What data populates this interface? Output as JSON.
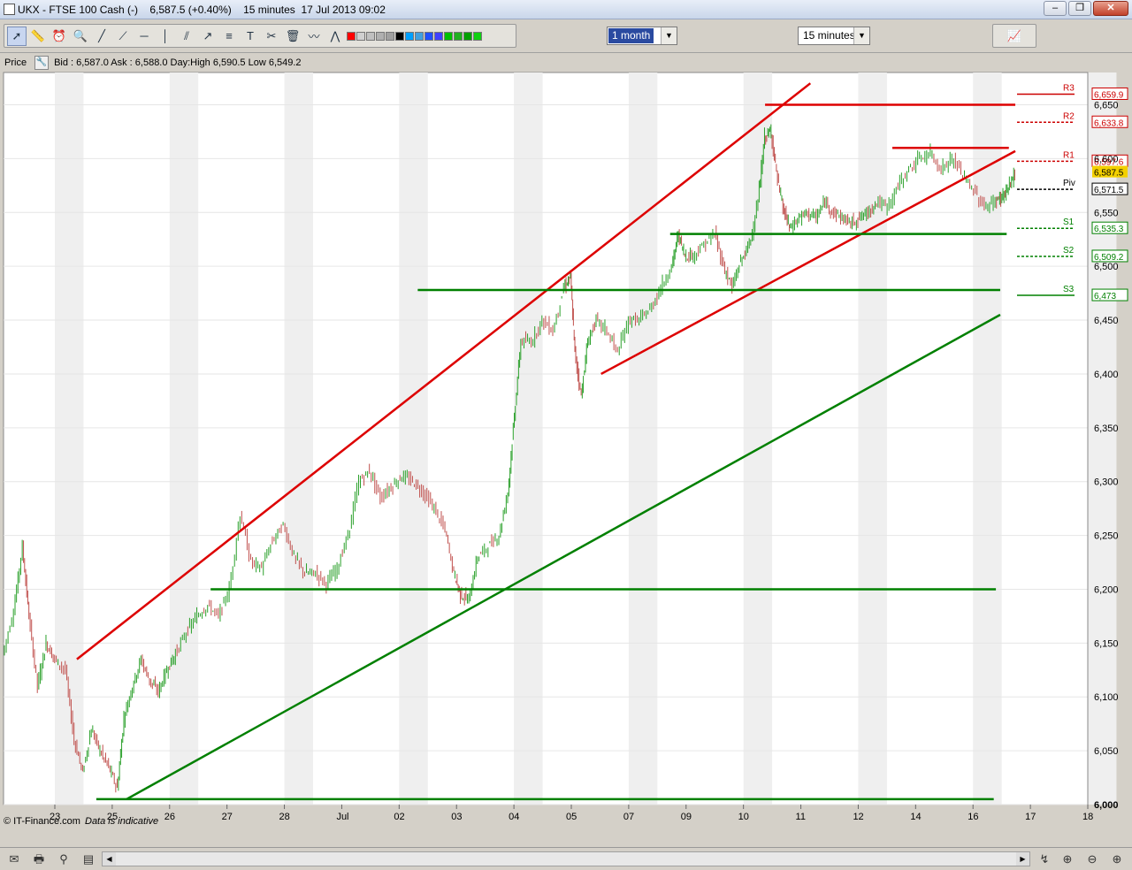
{
  "window": {
    "title": "UKX - FTSE 100 Cash (-)    6,587.5 (+0.40%)    15 minutes  17 Jul 2013 09:02",
    "minimize": "‒",
    "restore": "❐",
    "close": "✕"
  },
  "toolbar": {
    "period_value": "1 month",
    "interval_value": "15 minutes",
    "tools": [
      "cursor-icon",
      "ruler-icon",
      "alarm-icon",
      "zoom-icon",
      "line-icon",
      "trendline-icon",
      "horizontal-line-icon",
      "vertical-line-icon",
      "channel-icon",
      "arrow-icon",
      "fibonacci-icon",
      "text-icon",
      "tools-icon",
      "delete-icon",
      "indicator-icon",
      "indicator2-icon"
    ],
    "palette": [
      "#ff0000",
      "#d0d0d0",
      "#c0c0c0",
      "#b0b0b0",
      "#a0a0a0",
      "#000000",
      "#00a0ff",
      "#40a0e0",
      "#2050ff",
      "#4040ff",
      "#00c000",
      "#20b020",
      "#00a000",
      "#10d010"
    ]
  },
  "info": {
    "price_label": "Price",
    "quote": "Bid : 6,587.0 Ask : 6,588.0 Day:High 6,590.5 Low 6,549.2"
  },
  "chart_data": {
    "type": "candlestick",
    "instrument": "UKX - FTSE 100 Cash (-)",
    "interval": "15 minutes",
    "ylim": [
      6000,
      6680
    ],
    "y_ticks": [
      6000,
      6050,
      6100,
      6150,
      6200,
      6250,
      6300,
      6350,
      6400,
      6450,
      6500,
      6550,
      6600,
      6650
    ],
    "y_tick_labels": [
      "6,000",
      "6,050",
      "6,100",
      "6,150",
      "6,200",
      "6,250",
      "6,300",
      "6,350",
      "6,400",
      "6,450",
      "6,500",
      "6,550",
      "6,600",
      "6,650"
    ],
    "x_labels": [
      "23",
      "25",
      "26",
      "27",
      "28",
      "Jul",
      "02",
      "03",
      "04",
      "05",
      "07",
      "09",
      "10",
      "11",
      "12",
      "14",
      "16",
      "17",
      "18"
    ],
    "price_path": [
      [
        0,
        6140
      ],
      [
        0.5,
        6180
      ],
      [
        0.9,
        6240
      ],
      [
        1.2,
        6175
      ],
      [
        1.6,
        6110
      ],
      [
        2.0,
        6150
      ],
      [
        2.4,
        6135
      ],
      [
        2.9,
        6125
      ],
      [
        3.3,
        6060
      ],
      [
        3.7,
        6030
      ],
      [
        4.1,
        6070
      ],
      [
        4.5,
        6050
      ],
      [
        4.9,
        6035
      ],
      [
        5.3,
        6015
      ],
      [
        5.6,
        6080
      ],
      [
        6.0,
        6110
      ],
      [
        6.4,
        6135
      ],
      [
        6.8,
        6115
      ],
      [
        7.2,
        6105
      ],
      [
        7.6,
        6125
      ],
      [
        8.0,
        6140
      ],
      [
        8.5,
        6160
      ],
      [
        9.0,
        6175
      ],
      [
        9.5,
        6185
      ],
      [
        10.0,
        6175
      ],
      [
        10.5,
        6200
      ],
      [
        11.0,
        6270
      ],
      [
        11.5,
        6225
      ],
      [
        12.0,
        6220
      ],
      [
        12.5,
        6245
      ],
      [
        13.0,
        6260
      ],
      [
        13.5,
        6230
      ],
      [
        14.0,
        6215
      ],
      [
        14.5,
        6215
      ],
      [
        15.0,
        6205
      ],
      [
        15.5,
        6220
      ],
      [
        16.0,
        6250
      ],
      [
        16.5,
        6300
      ],
      [
        17.0,
        6310
      ],
      [
        17.5,
        6285
      ],
      [
        18.0,
        6295
      ],
      [
        18.5,
        6305
      ],
      [
        19.0,
        6300
      ],
      [
        19.5,
        6290
      ],
      [
        20.0,
        6275
      ],
      [
        20.5,
        6255
      ],
      [
        20.9,
        6215
      ],
      [
        21.2,
        6195
      ],
      [
        21.6,
        6190
      ],
      [
        22.0,
        6230
      ],
      [
        22.5,
        6240
      ],
      [
        23.0,
        6250
      ],
      [
        23.4,
        6290
      ],
      [
        23.7,
        6360
      ],
      [
        24.0,
        6430
      ],
      [
        24.5,
        6430
      ],
      [
        25.0,
        6450
      ],
      [
        25.5,
        6440
      ],
      [
        26.0,
        6480
      ],
      [
        26.3,
        6490
      ],
      [
        26.5,
        6420
      ],
      [
        26.8,
        6380
      ],
      [
        27.1,
        6430
      ],
      [
        27.5,
        6450
      ],
      [
        28.0,
        6440
      ],
      [
        28.5,
        6420
      ],
      [
        29.0,
        6450
      ],
      [
        29.5,
        6450
      ],
      [
        30.0,
        6460
      ],
      [
        30.5,
        6480
      ],
      [
        31.0,
        6500
      ],
      [
        31.3,
        6530
      ],
      [
        31.6,
        6510
      ],
      [
        32.0,
        6510
      ],
      [
        32.5,
        6520
      ],
      [
        33.0,
        6530
      ],
      [
        33.4,
        6500
      ],
      [
        33.8,
        6480
      ],
      [
        34.2,
        6505
      ],
      [
        34.6,
        6520
      ],
      [
        35.0,
        6560
      ],
      [
        35.3,
        6620
      ],
      [
        35.6,
        6625
      ],
      [
        35.9,
        6580
      ],
      [
        36.2,
        6550
      ],
      [
        36.5,
        6535
      ],
      [
        36.9,
        6545
      ],
      [
        37.3,
        6550
      ],
      [
        37.7,
        6545
      ],
      [
        38.1,
        6560
      ],
      [
        38.5,
        6550
      ],
      [
        38.9,
        6545
      ],
      [
        39.3,
        6540
      ],
      [
        39.7,
        6545
      ],
      [
        40.1,
        6550
      ],
      [
        40.5,
        6560
      ],
      [
        41.0,
        6555
      ],
      [
        41.5,
        6575
      ],
      [
        42.0,
        6590
      ],
      [
        42.5,
        6600
      ],
      [
        43.0,
        6605
      ],
      [
        43.5,
        6590
      ],
      [
        44.0,
        6600
      ],
      [
        44.5,
        6585
      ],
      [
        45.0,
        6570
      ],
      [
        45.5,
        6555
      ],
      [
        46.0,
        6560
      ],
      [
        46.3,
        6565
      ],
      [
        46.6,
        6572
      ],
      [
        46.9,
        6587
      ]
    ],
    "trendlines": [
      {
        "color": "#dd0000",
        "from": [
          3.4,
          6135
        ],
        "to": [
          37.4,
          6670
        ]
      },
      {
        "color": "#dd0000",
        "from": [
          35.3,
          6650
        ],
        "to": [
          46.9,
          6650
        ]
      },
      {
        "color": "#dd0000",
        "from": [
          41.2,
          6610
        ],
        "to": [
          46.6,
          6610
        ]
      },
      {
        "color": "#dd0000",
        "from": [
          27.7,
          6400
        ],
        "to": [
          46.9,
          6607
        ]
      },
      {
        "color": "#008000",
        "from": [
          30.9,
          6530
        ],
        "to": [
          46.5,
          6530
        ]
      },
      {
        "color": "#008000",
        "from": [
          19.2,
          6478
        ],
        "to": [
          46.2,
          6478
        ]
      },
      {
        "color": "#008000",
        "from": [
          5.7,
          6005
        ],
        "to": [
          46.2,
          6455
        ]
      },
      {
        "color": "#008000",
        "from": [
          9.6,
          6200
        ],
        "to": [
          46.0,
          6200
        ]
      },
      {
        "color": "#008000",
        "from": [
          4.3,
          6005
        ],
        "to": [
          45.9,
          6005
        ]
      }
    ],
    "pivots": [
      {
        "label": "R3",
        "value": 6659.9,
        "value_label": "6,659.9",
        "color": "#cc0000"
      },
      {
        "label": "R2",
        "value": 6633.8,
        "value_label": "6,633.8",
        "color": "#cc0000"
      },
      {
        "label": "R1",
        "value": 6597.6,
        "value_label": "6,597.6",
        "color": "#cc0000"
      },
      {
        "label": "Piv",
        "value": 6571.5,
        "value_label": "6,571.5",
        "color": "#000000"
      },
      {
        "label": "S1",
        "value": 6535.3,
        "value_label": "6,535.3",
        "color": "#008000"
      },
      {
        "label": "S2",
        "value": 6509.2,
        "value_label": "6,509.2",
        "color": "#008000"
      },
      {
        "label": "S3",
        "value": 6473.0,
        "value_label": "6,473",
        "color": "#008000"
      }
    ],
    "last_price": {
      "value": 6587.5,
      "label": "6,587.5"
    },
    "copyright": "© IT-Finance.com",
    "disclaimer": "Data is indicative",
    "grid": "alternating day bands"
  },
  "bottombar": {
    "icons": [
      "mail-icon",
      "print-icon",
      "lock-icon",
      "export-icon"
    ],
    "scroll_left": "◀",
    "scroll_right": "▶",
    "right_icons": [
      "autoscroll-icon",
      "zoom-fit-icon",
      "zoom-out-icon",
      "zoom-in-icon"
    ]
  }
}
